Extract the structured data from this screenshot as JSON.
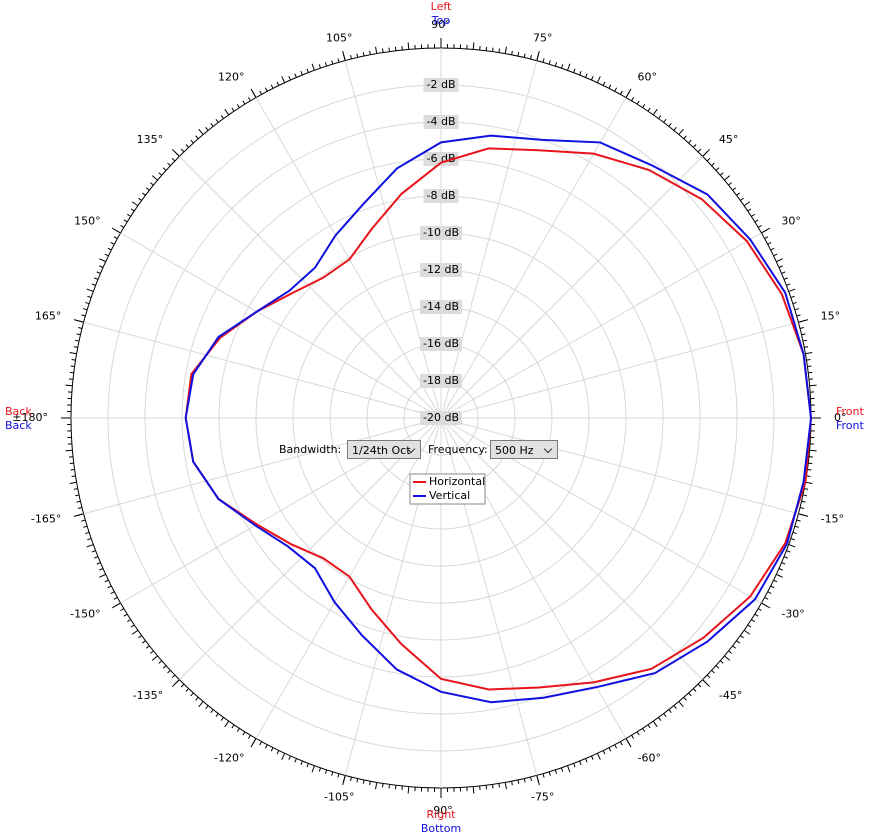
{
  "chart_data": {
    "type": "polar",
    "angles": [
      -180,
      -170,
      -160,
      -150,
      -140,
      -130,
      -120,
      -110,
      -100,
      -90,
      -80,
      -70,
      -60,
      -50,
      -40,
      -30,
      -20,
      -10,
      0,
      10,
      20,
      30,
      40,
      50,
      60,
      70,
      80,
      90,
      100,
      110,
      120,
      130,
      140,
      150,
      160,
      170,
      180
    ],
    "series": [
      {
        "name": "Horizontal",
        "color": "#e8141c",
        "values": [
          -6.2,
          -6.4,
          -7.2,
          -8.5,
          -9.4,
          -10.1,
          -10.1,
          -9.0,
          -7.6,
          -5.9,
          -5.1,
          -4.5,
          -3.5,
          -2.3,
          -1.5,
          -0.7,
          -0.2,
          0,
          0,
          -0.1,
          -0.4,
          -0.9,
          -1.6,
          -2.5,
          -3.5,
          -4.6,
          -5.2,
          -6.2,
          -7.7,
          -9.1,
          -10.1,
          -10.1,
          -9.5,
          -8.5,
          -7.3,
          -6.3,
          -6.2
        ]
      },
      {
        "name": "Vertical",
        "color": "#1010e0",
        "values": [
          -6.2,
          -6.4,
          -7.2,
          -8.4,
          -9.2,
          -9.4,
          -8.5,
          -7.5,
          -6.2,
          -5.2,
          -4.4,
          -3.9,
          -3.2,
          -2.0,
          -1.2,
          -0.4,
          -0.1,
          -0.1,
          0,
          -0.1,
          -0.2,
          -0.7,
          -1.2,
          -2.2,
          -2.8,
          -4.0,
          -4.5,
          -5.1,
          -6.3,
          -7.7,
          -8.6,
          -9.4,
          -9.3,
          -8.5,
          -7.2,
          -6.4,
          -6.2
        ]
      }
    ],
    "rlim": [
      -20,
      0
    ],
    "rticks": [
      {
        "value": -2,
        "label": "-2 dB"
      },
      {
        "value": -4,
        "label": "-4 dB"
      },
      {
        "value": -6,
        "label": "-6 dB"
      },
      {
        "value": -8,
        "label": "-8 dB"
      },
      {
        "value": -10,
        "label": "-10 dB"
      },
      {
        "value": -12,
        "label": "-12 dB"
      },
      {
        "value": -14,
        "label": "-14 dB"
      },
      {
        "value": -16,
        "label": "-16 dB"
      },
      {
        "value": -18,
        "label": "-18 dB"
      },
      {
        "value": -20,
        "label": "-20 dB"
      }
    ],
    "angle_ticks": [
      {
        "value": 0,
        "label": "0°"
      },
      {
        "value": 15,
        "label": "15°"
      },
      {
        "value": 30,
        "label": "30°"
      },
      {
        "value": 45,
        "label": "45°"
      },
      {
        "value": 60,
        "label": "60°"
      },
      {
        "value": 75,
        "label": "75°"
      },
      {
        "value": 90,
        "label": "90°"
      },
      {
        "value": 105,
        "label": "105°"
      },
      {
        "value": 120,
        "label": "120°"
      },
      {
        "value": 135,
        "label": "135°"
      },
      {
        "value": 150,
        "label": "150°"
      },
      {
        "value": 165,
        "label": "165°"
      },
      {
        "value": 180,
        "label": "±180°"
      },
      {
        "value": -165,
        "label": "-165°"
      },
      {
        "value": -150,
        "label": "-150°"
      },
      {
        "value": -135,
        "label": "-135°"
      },
      {
        "value": -120,
        "label": "-120°"
      },
      {
        "value": -105,
        "label": "-105°"
      },
      {
        "value": -90,
        "label": "-90°"
      },
      {
        "value": -75,
        "label": "-75°"
      },
      {
        "value": -60,
        "label": "-60°"
      },
      {
        "value": -45,
        "label": "-45°"
      },
      {
        "value": -30,
        "label": "-30°"
      },
      {
        "value": -15,
        "label": "-15°"
      }
    ],
    "direction_labels": {
      "top": [
        "Left",
        "Top"
      ],
      "right": [
        "Front",
        "Front"
      ],
      "bottom": [
        "Right",
        "Bottom"
      ],
      "left": [
        "Back",
        "Back"
      ]
    },
    "grid": true
  },
  "controls": {
    "bandwidth_label": "Bandwidth:",
    "bandwidth_value": "1/24th Oct",
    "frequency_label": "Frequency:",
    "frequency_value": "500 Hz"
  }
}
